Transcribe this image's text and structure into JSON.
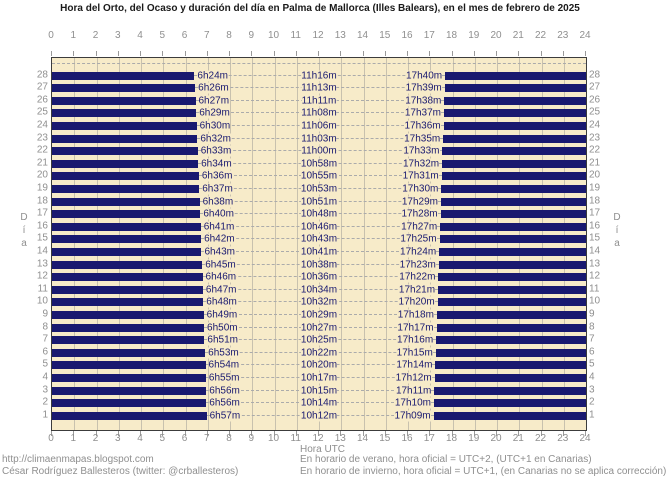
{
  "title": "Hora del Orto, del Ocaso y duración del día en Palma de Mallorca (Illes Balears), en el mes de febrero de 2025",
  "chart_data": {
    "type": "bar",
    "subtype": "horizontal-day-night-gantt",
    "title": "Hora del Orto, del Ocaso y duración del día en Palma de Mallorca (Illes Balears), en el mes de febrero de 2025",
    "xlabel": "Hora UTC",
    "ylabel": "Día",
    "x_axis": {
      "min": 0,
      "max": 24,
      "ticks": [
        0,
        1,
        2,
        3,
        4,
        5,
        6,
        7,
        8,
        9,
        10,
        11,
        12,
        13,
        14,
        15,
        16,
        17,
        18,
        19,
        20,
        21,
        22,
        23,
        24
      ]
    },
    "y_axis": {
      "min_day": 1,
      "max_day": 28,
      "order": "28 at top, 1 at bottom"
    },
    "night_bar_color": "#191970",
    "plot_background_color": "#F7EBC9",
    "days": [
      {
        "day": 1,
        "orto": "6h57m",
        "duracion": "10h12m",
        "ocaso": "17h09m"
      },
      {
        "day": 2,
        "orto": "6h56m",
        "duracion": "10h14m",
        "ocaso": "17h10m"
      },
      {
        "day": 3,
        "orto": "6h56m",
        "duracion": "10h15m",
        "ocaso": "17h11m"
      },
      {
        "day": 4,
        "orto": "6h55m",
        "duracion": "10h17m",
        "ocaso": "17h12m"
      },
      {
        "day": 5,
        "orto": "6h54m",
        "duracion": "10h20m",
        "ocaso": "17h14m"
      },
      {
        "day": 6,
        "orto": "6h53m",
        "duracion": "10h22m",
        "ocaso": "17h15m"
      },
      {
        "day": 7,
        "orto": "6h51m",
        "duracion": "10h25m",
        "ocaso": "17h16m"
      },
      {
        "day": 8,
        "orto": "6h50m",
        "duracion": "10h27m",
        "ocaso": "17h17m"
      },
      {
        "day": 9,
        "orto": "6h49m",
        "duracion": "10h29m",
        "ocaso": "17h18m"
      },
      {
        "day": 10,
        "orto": "6h48m",
        "duracion": "10h32m",
        "ocaso": "17h20m"
      },
      {
        "day": 11,
        "orto": "6h47m",
        "duracion": "10h34m",
        "ocaso": "17h21m"
      },
      {
        "day": 12,
        "orto": "6h46m",
        "duracion": "10h36m",
        "ocaso": "17h22m"
      },
      {
        "day": 13,
        "orto": "6h45m",
        "duracion": "10h38m",
        "ocaso": "17h23m"
      },
      {
        "day": 14,
        "orto": "6h43m",
        "duracion": "10h41m",
        "ocaso": "17h24m"
      },
      {
        "day": 15,
        "orto": "6h42m",
        "duracion": "10h43m",
        "ocaso": "17h25m"
      },
      {
        "day": 16,
        "orto": "6h41m",
        "duracion": "10h46m",
        "ocaso": "17h27m"
      },
      {
        "day": 17,
        "orto": "6h40m",
        "duracion": "10h48m",
        "ocaso": "17h28m"
      },
      {
        "day": 18,
        "orto": "6h38m",
        "duracion": "10h51m",
        "ocaso": "17h29m"
      },
      {
        "day": 19,
        "orto": "6h37m",
        "duracion": "10h53m",
        "ocaso": "17h30m"
      },
      {
        "day": 20,
        "orto": "6h36m",
        "duracion": "10h55m",
        "ocaso": "17h31m"
      },
      {
        "day": 21,
        "orto": "6h34m",
        "duracion": "10h58m",
        "ocaso": "17h32m"
      },
      {
        "day": 22,
        "orto": "6h33m",
        "duracion": "11h00m",
        "ocaso": "17h33m"
      },
      {
        "day": 23,
        "orto": "6h32m",
        "duracion": "11h03m",
        "ocaso": "17h35m"
      },
      {
        "day": 24,
        "orto": "6h30m",
        "duracion": "11h06m",
        "ocaso": "17h36m"
      },
      {
        "day": 25,
        "orto": "6h29m",
        "duracion": "11h08m",
        "ocaso": "17h37m"
      },
      {
        "day": 26,
        "orto": "6h27m",
        "duracion": "11h11m",
        "ocaso": "17h38m"
      },
      {
        "day": 27,
        "orto": "6h26m",
        "duracion": "11h13m",
        "ocaso": "17h39m"
      },
      {
        "day": 28,
        "orto": "6h24m",
        "duracion": "11h16m",
        "ocaso": "17h40m"
      }
    ]
  },
  "footer": {
    "left_line1": "http://climaenmapas.blogspot.com",
    "left_line2": "César Rodríguez Ballesteros (twitter: @crballesteros)",
    "right_line1": "En horario de verano, hora oficial = UTC+2, (UTC+1 en Canarias)",
    "right_line2": "En horario de invierno, hora oficial = UTC+1, (en Canarias no se aplica corrección)"
  },
  "colors": {
    "night_bar": "#191970",
    "plot_background": "#F7EBC9",
    "grid_vertical": "#C8C1AE",
    "grid_dashed": "#ABABAB",
    "axis_text": "#8f8f8f",
    "title_text": "#1a1a1a",
    "border": "#3c3c3c"
  }
}
